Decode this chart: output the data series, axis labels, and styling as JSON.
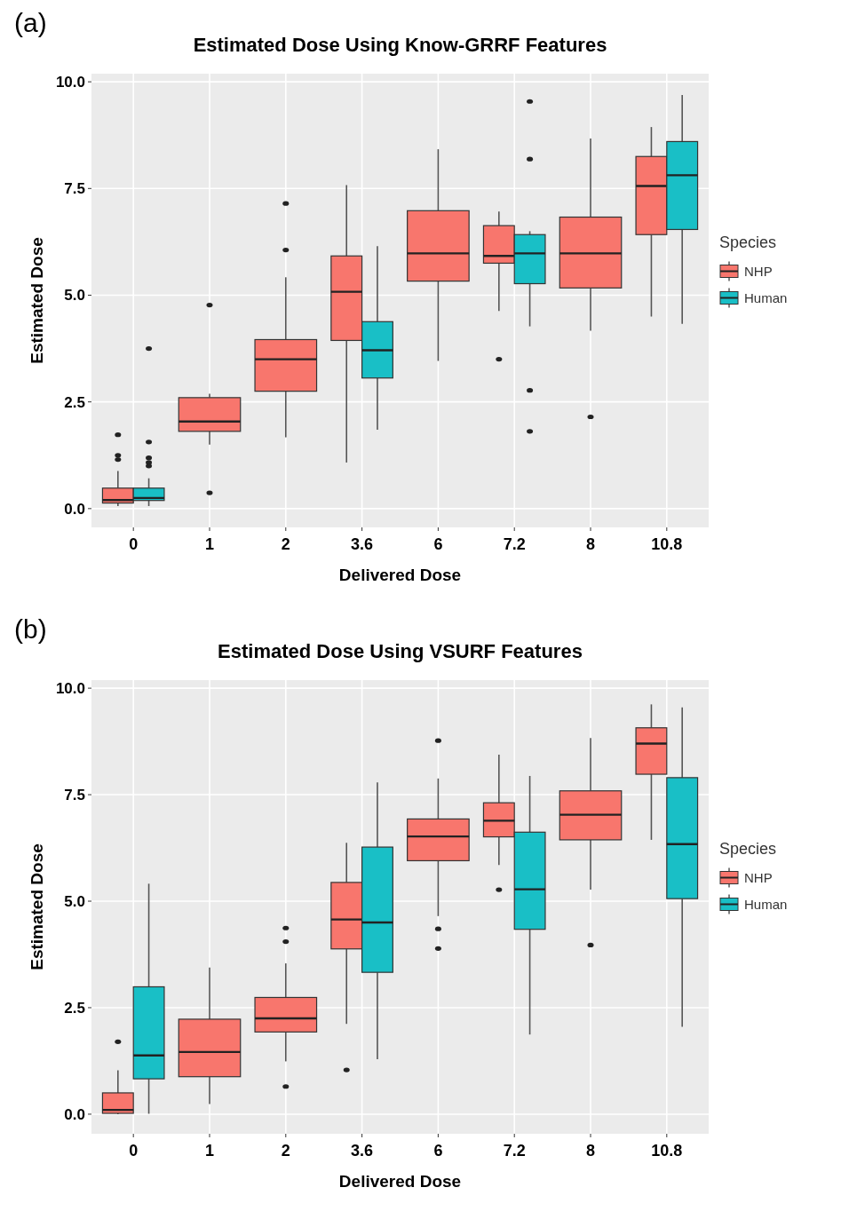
{
  "chart_data": [
    {
      "type": "box",
      "title": "Estimated Dose Using Know-GRRF Features",
      "xlabel": "Delivered Dose",
      "ylabel": "Estimated Dose",
      "legend_title": "Species",
      "legend": "right",
      "grid": true,
      "annotations": [
        "(a)"
      ],
      "categories": [
        "0",
        "1",
        "2",
        "3.6",
        "6",
        "7.2",
        "8",
        "10.8"
      ],
      "ylim": [
        -0.44,
        10.19
      ],
      "yticks": [
        {
          "value": 0,
          "label": "0.0"
        },
        {
          "value": 2.5,
          "label": "2.5"
        },
        {
          "value": 5,
          "label": "5.0"
        },
        {
          "value": 7.5,
          "label": "7.5"
        },
        {
          "value": 10,
          "label": "10.0"
        }
      ],
      "series": [
        {
          "name": "NHP",
          "color": "#f8766d",
          "boxes": [
            {
              "low": 0.06,
              "q1": 0.13,
              "median": 0.2,
              "q3": 0.48,
              "high": 0.88,
              "outliers": [
                1.73,
                1.25,
                1.15
              ]
            },
            {
              "low": 1.5,
              "q1": 1.81,
              "median": 2.04,
              "q3": 2.6,
              "high": 2.69,
              "outliers": [
                4.77,
                0.37
              ]
            },
            {
              "low": 1.67,
              "q1": 2.75,
              "median": 3.5,
              "q3": 3.96,
              "high": 5.42,
              "outliers": [
                7.15,
                6.06
              ]
            },
            {
              "low": 1.08,
              "q1": 3.94,
              "median": 5.08,
              "q3": 5.92,
              "high": 7.58
            },
            {
              "low": 3.46,
              "q1": 5.33,
              "median": 5.98,
              "q3": 6.98,
              "high": 8.42
            },
            {
              "low": 4.63,
              "q1": 5.75,
              "median": 5.92,
              "q3": 6.63,
              "high": 6.96,
              "outliers": [
                3.5
              ]
            },
            {
              "low": 4.17,
              "q1": 5.17,
              "median": 5.98,
              "q3": 6.83,
              "high": 8.67,
              "outliers": [
                2.15
              ]
            },
            {
              "low": 4.5,
              "q1": 6.42,
              "median": 7.56,
              "q3": 8.25,
              "high": 8.94
            }
          ]
        },
        {
          "name": "Human",
          "color": "#19bfc6",
          "boxes": [
            {
              "low": 0.06,
              "q1": 0.19,
              "median": 0.25,
              "q3": 0.48,
              "high": 0.71,
              "outliers": [
                3.75,
                1.56,
                1.19,
                1.08,
                1.0
              ]
            },
            null,
            null,
            {
              "low": 1.85,
              "q1": 3.06,
              "median": 3.71,
              "q3": 4.38,
              "high": 6.15
            },
            null,
            {
              "low": 4.27,
              "q1": 5.27,
              "median": 5.98,
              "q3": 6.42,
              "high": 6.5,
              "outliers": [
                9.54,
                8.19,
                2.77,
                1.81
              ]
            },
            null,
            {
              "low": 4.33,
              "q1": 6.54,
              "median": 7.81,
              "q3": 8.6,
              "high": 9.69
            }
          ]
        }
      ]
    },
    {
      "type": "box",
      "title": "Estimated Dose Using VSURF Features",
      "xlabel": "Delivered Dose",
      "ylabel": "Estimated Dose",
      "legend_title": "Species",
      "legend": "right",
      "grid": true,
      "annotations": [
        "(b)"
      ],
      "categories": [
        "0",
        "1",
        "2",
        "3.6",
        "6",
        "7.2",
        "8",
        "10.8"
      ],
      "ylim": [
        -0.46,
        10.19
      ],
      "yticks": [
        {
          "value": 0,
          "label": "0.0"
        },
        {
          "value": 2.5,
          "label": "2.5"
        },
        {
          "value": 5,
          "label": "5.0"
        },
        {
          "value": 7.5,
          "label": "7.5"
        },
        {
          "value": 10,
          "label": "10.0"
        }
      ],
      "series": [
        {
          "name": "NHP",
          "color": "#f8766d",
          "boxes": [
            {
              "low": 0.0,
              "q1": 0.02,
              "median": 0.1,
              "q3": 0.5,
              "high": 1.03,
              "outliers": [
                1.7
              ]
            },
            {
              "low": 0.24,
              "q1": 0.88,
              "median": 1.46,
              "q3": 2.23,
              "high": 3.44
            },
            {
              "low": 1.24,
              "q1": 1.93,
              "median": 2.25,
              "q3": 2.74,
              "high": 3.54,
              "outliers": [
                4.37,
                4.05,
                0.65
              ]
            },
            {
              "low": 2.12,
              "q1": 3.88,
              "median": 4.57,
              "q3": 5.44,
              "high": 6.37,
              "outliers": [
                1.04
              ]
            },
            {
              "low": 4.65,
              "q1": 5.95,
              "median": 6.52,
              "q3": 6.93,
              "high": 7.88,
              "outliers": [
                8.77,
                4.35,
                3.89
              ]
            },
            {
              "low": 5.85,
              "q1": 6.51,
              "median": 6.89,
              "q3": 7.31,
              "high": 8.44,
              "outliers": [
                5.27
              ]
            },
            {
              "low": 5.27,
              "q1": 6.44,
              "median": 7.03,
              "q3": 7.59,
              "high": 8.83,
              "outliers": [
                3.97
              ]
            },
            {
              "low": 6.44,
              "q1": 7.98,
              "median": 8.7,
              "q3": 9.07,
              "high": 9.62
            }
          ]
        },
        {
          "name": "Human",
          "color": "#19bfc6",
          "boxes": [
            {
              "low": 0.01,
              "q1": 0.83,
              "median": 1.38,
              "q3": 2.99,
              "high": 5.41
            },
            null,
            null,
            {
              "low": 1.29,
              "q1": 3.33,
              "median": 4.5,
              "q3": 6.27,
              "high": 7.79
            },
            null,
            {
              "low": 1.87,
              "q1": 4.34,
              "median": 5.28,
              "q3": 6.62,
              "high": 7.94
            },
            null,
            {
              "low": 2.05,
              "q1": 5.06,
              "median": 6.34,
              "q3": 7.9,
              "high": 9.55
            }
          ]
        }
      ]
    }
  ]
}
